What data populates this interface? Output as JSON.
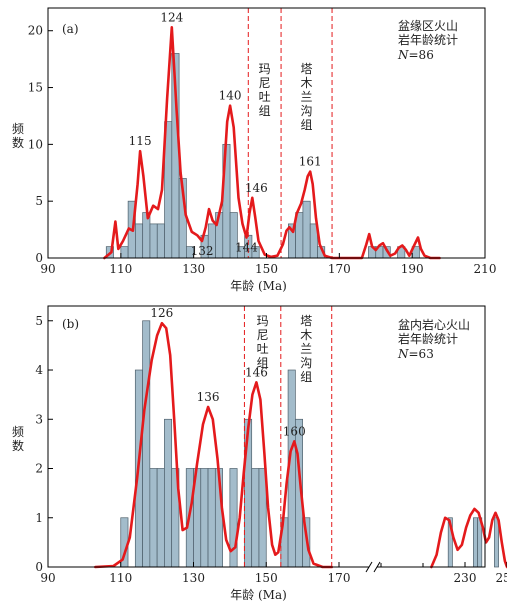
{
  "chart_data": [
    {
      "type": "histogram",
      "panel_label": "(a)",
      "title_lines": [
        "盆缘区火山",
        "岩年龄统计"
      ],
      "n_label": "N",
      "n_value": "=86",
      "xlabel": "年龄 (Ma)",
      "ylabel": "频数",
      "xlim": [
        90,
        210
      ],
      "ylim": [
        0,
        22
      ],
      "xticks": [
        90,
        110,
        130,
        150,
        170,
        190,
        210
      ],
      "yticks": [
        0,
        5,
        10,
        15,
        20
      ],
      "bin_width": 2,
      "bins": [
        {
          "x0": 106,
          "count": 1
        },
        {
          "x0": 110,
          "count": 1
        },
        {
          "x0": 112,
          "count": 5
        },
        {
          "x0": 114,
          "count": 3
        },
        {
          "x0": 116,
          "count": 4
        },
        {
          "x0": 118,
          "count": 3
        },
        {
          "x0": 120,
          "count": 3
        },
        {
          "x0": 122,
          "count": 12
        },
        {
          "x0": 124,
          "count": 18
        },
        {
          "x0": 126,
          "count": 7
        },
        {
          "x0": 128,
          "count": 1
        },
        {
          "x0": 132,
          "count": 2
        },
        {
          "x0": 134,
          "count": 3
        },
        {
          "x0": 136,
          "count": 4
        },
        {
          "x0": 138,
          "count": 10
        },
        {
          "x0": 140,
          "count": 4
        },
        {
          "x0": 142,
          "count": 1
        },
        {
          "x0": 144,
          "count": 2
        },
        {
          "x0": 146,
          "count": 1
        },
        {
          "x0": 156,
          "count": 3
        },
        {
          "x0": 158,
          "count": 4
        },
        {
          "x0": 160,
          "count": 5
        },
        {
          "x0": 162,
          "count": 3
        },
        {
          "x0": 164,
          "count": 1
        },
        {
          "x0": 178,
          "count": 1
        },
        {
          "x0": 180,
          "count": 1
        },
        {
          "x0": 182,
          "count": 1
        },
        {
          "x0": 186,
          "count": 1
        },
        {
          "x0": 190,
          "count": 1
        }
      ],
      "curve": [
        [
          105.5,
          0
        ],
        [
          107.4,
          0.5
        ],
        [
          108.5,
          3.2
        ],
        [
          109.3,
          0.8
        ],
        [
          110.6,
          1.5
        ],
        [
          112.2,
          2.6
        ],
        [
          113.3,
          2.4
        ],
        [
          114.6,
          6.5
        ],
        [
          115.3,
          9.4
        ],
        [
          116.2,
          7.2
        ],
        [
          117.4,
          3.5
        ],
        [
          118.9,
          4.6
        ],
        [
          120.2,
          4.3
        ],
        [
          121.3,
          6.0
        ],
        [
          122.7,
          14.0
        ],
        [
          124.0,
          20.3
        ],
        [
          125.3,
          13.0
        ],
        [
          126.4,
          7.5
        ],
        [
          127.8,
          3.8
        ],
        [
          129.5,
          2.3
        ],
        [
          131.0,
          2.0
        ],
        [
          132.3,
          1.5
        ],
        [
          133.3,
          2.7
        ],
        [
          134.2,
          4.3
        ],
        [
          135.2,
          3.3
        ],
        [
          136.3,
          2.9
        ],
        [
          137.8,
          5.0
        ],
        [
          139.2,
          12.0
        ],
        [
          140.0,
          13.4
        ],
        [
          141.0,
          11.5
        ],
        [
          142.3,
          5.3
        ],
        [
          143.4,
          3.0
        ],
        [
          144.5,
          1.8
        ],
        [
          145.3,
          3.9
        ],
        [
          146.1,
          5.3
        ],
        [
          146.9,
          3.6
        ],
        [
          147.8,
          1.5
        ],
        [
          149.5,
          0.3
        ],
        [
          151.2,
          0.1
        ],
        [
          153.0,
          0.2
        ],
        [
          154.5,
          1.2
        ],
        [
          155.5,
          2.4
        ],
        [
          156.3,
          2.7
        ],
        [
          157.3,
          2.3
        ],
        [
          158.3,
          3.9
        ],
        [
          159.5,
          4.8
        ],
        [
          160.5,
          6.0
        ],
        [
          161.3,
          7.2
        ],
        [
          162.0,
          7.6
        ],
        [
          162.7,
          6.5
        ],
        [
          163.6,
          3.5
        ],
        [
          164.6,
          1.2
        ],
        [
          166.0,
          0.2
        ],
        [
          168.0,
          0
        ],
        [
          176.2,
          0
        ],
        [
          177.4,
          1.2
        ],
        [
          178.2,
          2.1
        ],
        [
          179.0,
          1.0
        ],
        [
          180.0,
          0.7
        ],
        [
          181.0,
          1.1
        ],
        [
          182.0,
          1.3
        ],
        [
          183.0,
          0.7
        ],
        [
          184.0,
          0.2
        ],
        [
          185.3,
          0.4
        ],
        [
          186.3,
          0.9
        ],
        [
          187.3,
          1.1
        ],
        [
          188.3,
          0.7
        ],
        [
          189.2,
          0.2
        ],
        [
          190.4,
          1.0
        ],
        [
          191.6,
          1.8
        ],
        [
          192.4,
          0.8
        ],
        [
          193.4,
          0.2
        ],
        [
          195.0,
          0
        ],
        [
          197.5,
          0
        ]
      ],
      "peaks": [
        {
          "label": "124",
          "x": 124.0,
          "y": 20.3
        },
        {
          "label": "115",
          "x": 115.3,
          "y": 9.4
        },
        {
          "label": "140",
          "x": 140.0,
          "y": 13.4
        },
        {
          "label": "146",
          "x": 146.1,
          "y": 5.3
        },
        {
          "label": "161",
          "x": 162.0,
          "y": 7.6
        },
        {
          "label": "132",
          "x": 132.3,
          "y": 1.5
        },
        {
          "label": "144",
          "x": 144.5,
          "y": 1.8
        }
      ],
      "ref_lines": [
        145,
        154,
        168
      ],
      "formations": [
        {
          "text": "玛尼吐组",
          "x_range": [
            145,
            154
          ]
        },
        {
          "text": "塔木兰沟组",
          "x_range": [
            154,
            168
          ]
        }
      ]
    },
    {
      "type": "histogram",
      "panel_label": "(b)",
      "title_lines": [
        "盆内岩心火山",
        "岩年龄统计"
      ],
      "n_label": "N",
      "n_value": "=63",
      "xlabel": "年龄 (Ma)",
      "ylabel": "频数",
      "xlim": [
        90,
        250
      ],
      "broken_axis": [
        170,
        210
      ],
      "ylim": [
        0,
        5.3
      ],
      "xticks": [
        90,
        110,
        130,
        150,
        170,
        230,
        250
      ],
      "xticks_minor": [
        190,
        210
      ],
      "yticks": [
        0,
        1,
        2,
        3,
        4,
        5
      ],
      "bin_width": 2,
      "bins": [
        {
          "x0": 110,
          "count": 1
        },
        {
          "x0": 114,
          "count": 4
        },
        {
          "x0": 116,
          "count": 5
        },
        {
          "x0": 118,
          "count": 2
        },
        {
          "x0": 120,
          "count": 2
        },
        {
          "x0": 122,
          "count": 3
        },
        {
          "x0": 124,
          "count": 2
        },
        {
          "x0": 128,
          "count": 2
        },
        {
          "x0": 130,
          "count": 2
        },
        {
          "x0": 132,
          "count": 2
        },
        {
          "x0": 134,
          "count": 2
        },
        {
          "x0": 136,
          "count": 2
        },
        {
          "x0": 140,
          "count": 2
        },
        {
          "x0": 144,
          "count": 3
        },
        {
          "x0": 146,
          "count": 2
        },
        {
          "x0": 148,
          "count": 2
        },
        {
          "x0": 154,
          "count": 1
        },
        {
          "x0": 156,
          "count": 4
        },
        {
          "x0": 158,
          "count": 3
        },
        {
          "x0": 160,
          "count": 1
        },
        {
          "x0": 222,
          "count": 1
        },
        {
          "x0": 234,
          "count": 1
        },
        {
          "x0": 236,
          "count": 1
        },
        {
          "x0": 244,
          "count": 1
        }
      ],
      "curve": [
        [
          103,
          0
        ],
        [
          108,
          0.02
        ],
        [
          110.5,
          0.15
        ],
        [
          112.5,
          0.6
        ],
        [
          114.5,
          1.8
        ],
        [
          116.5,
          3.2
        ],
        [
          118.5,
          4.2
        ],
        [
          120.0,
          4.7
        ],
        [
          121.3,
          4.95
        ],
        [
          122.5,
          4.85
        ],
        [
          123.6,
          4.3
        ],
        [
          124.7,
          3.0
        ],
        [
          125.8,
          1.6
        ],
        [
          127.0,
          0.75
        ],
        [
          128.2,
          0.8
        ],
        [
          129.5,
          1.3
        ],
        [
          131.0,
          2.1
        ],
        [
          132.6,
          2.9
        ],
        [
          134.0,
          3.25
        ],
        [
          135.3,
          3.0
        ],
        [
          136.6,
          2.2
        ],
        [
          137.8,
          1.2
        ],
        [
          139.0,
          0.55
        ],
        [
          140.2,
          0.32
        ],
        [
          141.5,
          0.4
        ],
        [
          142.7,
          1.0
        ],
        [
          143.8,
          1.9
        ],
        [
          145.0,
          2.8
        ],
        [
          146.2,
          3.5
        ],
        [
          147.3,
          3.75
        ],
        [
          148.4,
          3.4
        ],
        [
          149.5,
          2.3
        ],
        [
          150.5,
          1.2
        ],
        [
          151.6,
          0.45
        ],
        [
          152.5,
          0.25
        ],
        [
          153.3,
          0.3
        ],
        [
          154.5,
          0.85
        ],
        [
          155.6,
          1.7
        ],
        [
          156.7,
          2.35
        ],
        [
          157.7,
          2.55
        ],
        [
          158.6,
          2.3
        ],
        [
          159.5,
          1.6
        ],
        [
          160.5,
          0.9
        ],
        [
          161.6,
          0.35
        ],
        [
          163.0,
          0.07
        ],
        [
          165.5,
          0
        ],
        [
          168,
          0
        ],
        [
          214,
          0
        ],
        [
          216.5,
          0.25
        ],
        [
          218.5,
          0.7
        ],
        [
          220.5,
          1.0
        ],
        [
          222.5,
          0.95
        ],
        [
          224.5,
          0.6
        ],
        [
          226.5,
          0.35
        ],
        [
          228.5,
          0.45
        ],
        [
          230.5,
          0.8
        ],
        [
          232.5,
          1.05
        ],
        [
          234.5,
          1.18
        ],
        [
          236.5,
          1.1
        ],
        [
          238.5,
          0.8
        ],
        [
          240.0,
          0.5
        ],
        [
          241.5,
          0.6
        ],
        [
          243.0,
          0.95
        ],
        [
          244.5,
          1.1
        ],
        [
          246.0,
          0.95
        ],
        [
          247.5,
          0.5
        ],
        [
          249.0,
          0.12
        ],
        [
          250,
          0
        ]
      ],
      "peaks": [
        {
          "label": "126",
          "x": 121.3,
          "y": 4.95
        },
        {
          "label": "136",
          "x": 134.0,
          "y": 3.25
        },
        {
          "label": "146",
          "x": 147.3,
          "y": 3.75
        },
        {
          "label": "160",
          "x": 157.7,
          "y": 2.55
        }
      ],
      "ref_lines": [
        144,
        154,
        168
      ],
      "formations": [
        {
          "text": "玛尼吐组",
          "x_range": [
            144,
            154
          ]
        },
        {
          "text": "塔木兰沟组",
          "x_range": [
            154,
            168
          ]
        }
      ]
    }
  ]
}
